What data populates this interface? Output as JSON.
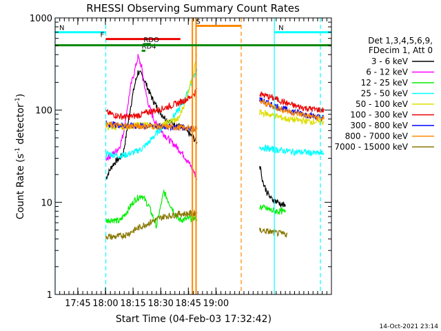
{
  "chart_data": {
    "type": "line",
    "title": "RHESSI Observing Summary Count Rates",
    "xlabel": "Start Time (04-Feb-03 17:32:42)",
    "ylabel_parts": [
      "Count Rate (s",
      "-1",
      " detector",
      "-1",
      ")"
    ],
    "yscale": "log",
    "ylim": [
      1,
      1000
    ],
    "xlim_min": [
      0,
      150
    ],
    "x_tick_labels": [
      "17:45",
      "18:00",
      "18:15",
      "18:30",
      "18:45",
      "19:00"
    ],
    "x_tick_min": [
      12.3,
      27.3,
      42.3,
      57.3,
      72.3,
      87.3
    ],
    "y_tick_labels": [
      "1",
      "10",
      "100",
      "1000"
    ],
    "y_tick_values": [
      1,
      10,
      100,
      1000
    ],
    "legend_header": [
      "Det 1,3,4,5,6,9,",
      "FDecim 1, Att 0"
    ],
    "legend_placement": "right",
    "footer_date": "14-Oct-2021 23:14",
    "data_gaps_min": [
      [
        0,
        27.5
      ],
      [
        77,
        111
      ]
    ],
    "series": [
      {
        "name": "3 - 6 keV",
        "color": "#000000",
        "x": [
          27.5,
          29,
          31,
          33,
          35,
          37,
          39,
          41,
          43,
          45,
          47,
          49,
          51,
          53,
          55,
          57,
          59,
          61,
          63,
          65,
          67,
          69,
          71,
          73,
          75,
          77
        ],
        "y": [
          18,
          21,
          25,
          28,
          30,
          34,
          60,
          110,
          180,
          260,
          240,
          200,
          160,
          130,
          110,
          95,
          85,
          78,
          74,
          70,
          68,
          65,
          60,
          55,
          50,
          45
        ]
      },
      {
        "name": "6 - 12 keV",
        "color": "#ff00ff",
        "x": [
          27.5,
          29,
          31,
          33,
          35,
          37,
          39,
          41,
          43,
          45,
          47,
          49,
          51,
          53,
          55,
          57,
          59,
          61,
          63,
          65,
          67,
          69,
          71,
          73,
          75,
          77
        ],
        "y": [
          30,
          31,
          33,
          36,
          40,
          55,
          100,
          180,
          260,
          380,
          290,
          160,
          110,
          85,
          70,
          62,
          55,
          50,
          45,
          42,
          38,
          34,
          30,
          26,
          22,
          18
        ]
      },
      {
        "name": "12 - 25 keV",
        "color": "#00ee00",
        "x": [
          27.5,
          31,
          35,
          39,
          43,
          47,
          51,
          55,
          59,
          63,
          67,
          71,
          75,
          77
        ],
        "y": [
          6.3,
          6.5,
          6.2,
          8,
          10.5,
          12,
          9,
          5.5,
          13,
          9,
          6.5,
          6.5,
          6.8,
          6.5
        ]
      },
      {
        "name": "25 - 50 keV",
        "color": "#00ffff",
        "x": [
          27.5,
          31,
          35,
          39,
          43,
          47,
          51,
          55,
          59,
          63,
          67,
          71,
          75,
          77
        ],
        "y": [
          34,
          33,
          32,
          33,
          35,
          38,
          45,
          56,
          68,
          80,
          100,
          140,
          230,
          280
        ]
      },
      {
        "name": "50 - 100 keV",
        "color": "#dddd00",
        "x": [
          27.5,
          31,
          35,
          39,
          43,
          47,
          51,
          55,
          59,
          63,
          67,
          71,
          75,
          77
        ],
        "y": [
          66,
          65,
          66,
          67,
          68,
          70,
          68,
          66,
          70,
          76,
          80,
          130,
          250,
          400
        ]
      },
      {
        "name": "100 - 300 keV",
        "color": "#ee0000",
        "x": [
          27.5,
          31,
          35,
          39,
          43,
          47,
          51,
          55,
          59,
          63,
          67,
          71,
          75,
          77
        ],
        "y": [
          95,
          90,
          86,
          84,
          86,
          90,
          96,
          100,
          105,
          112,
          120,
          130,
          145,
          170
        ]
      },
      {
        "name": "300 - 800 keV",
        "color": "#0000ff",
        "x": [
          27.5,
          31,
          35,
          39,
          43,
          47,
          51,
          55,
          59,
          63,
          67,
          71,
          75,
          77
        ],
        "y": [
          72,
          70,
          69,
          68,
          67,
          67,
          67,
          67,
          66,
          66,
          65,
          65,
          64,
          64
        ]
      },
      {
        "name": "800 - 7000 keV",
        "color": "#ff8800",
        "x": [
          27.5,
          31,
          35,
          39,
          43,
          47,
          51,
          55,
          59,
          63,
          67,
          71,
          75,
          77
        ],
        "y": [
          70,
          69,
          68,
          67,
          67,
          67,
          67,
          67,
          66,
          66,
          65,
          64,
          63,
          62
        ]
      },
      {
        "name": "7000 - 15000 keV",
        "color": "#887700",
        "x": [
          27.5,
          31,
          35,
          39,
          43,
          47,
          51,
          55,
          59,
          63,
          67,
          71,
          75,
          77
        ],
        "y": [
          4.3,
          4.2,
          4.3,
          4.5,
          5,
          5.5,
          6,
          6.5,
          7,
          7.2,
          7.5,
          7.5,
          7.6,
          7.8
        ]
      }
    ],
    "series_after_gap": [
      {
        "color": "#000000",
        "x": [
          111,
          113,
          115,
          117,
          119,
          121,
          123,
          125
        ],
        "y": [
          26,
          16,
          13,
          11,
          10.5,
          10,
          9.5,
          9
        ]
      },
      {
        "color": "#00ee00",
        "x": [
          111,
          115,
          119,
          123,
          125
        ],
        "y": [
          9,
          8.5,
          8,
          8,
          7.8
        ]
      },
      {
        "color": "#00ffff",
        "x": [
          111,
          116,
          121,
          126,
          131,
          136,
          141,
          146
        ],
        "y": [
          40,
          38,
          37,
          36,
          35,
          35,
          34,
          34
        ]
      },
      {
        "color": "#dddd00",
        "x": [
          111,
          116,
          121,
          126,
          131,
          136,
          141,
          146
        ],
        "y": [
          95,
          90,
          85,
          80,
          78,
          76,
          75,
          74
        ]
      },
      {
        "color": "#ee0000",
        "x": [
          111,
          116,
          121,
          126,
          131,
          136,
          141,
          146
        ],
        "y": [
          150,
          140,
          130,
          118,
          110,
          105,
          102,
          100
        ]
      },
      {
        "color": "#0000ff",
        "x": [
          111,
          116,
          121,
          126,
          131,
          136,
          141,
          146
        ],
        "y": [
          130,
          118,
          108,
          100,
          95,
          90,
          86,
          82
        ]
      },
      {
        "color": "#ff8800",
        "x": [
          111,
          116,
          121,
          126,
          131,
          136,
          141,
          146
        ],
        "y": [
          125,
          115,
          105,
          98,
          92,
          88,
          84,
          80
        ]
      },
      {
        "color": "#887700",
        "x": [
          111,
          116,
          121,
          126
        ],
        "y": [
          5,
          4.8,
          4.6,
          4.5
        ]
      }
    ],
    "flag_bars": [
      {
        "label": "N",
        "color": "#00ffff",
        "x_start": 0,
        "x_end": 27.5,
        "level": 700
      },
      {
        "label": "N",
        "color": "#00ffff",
        "x_start": 119,
        "x_end": 150,
        "level": 700
      },
      {
        "label": "F",
        "color": "#ee0000",
        "x_start": 27.5,
        "x_end": 68,
        "level": 590
      },
      {
        "label": "S",
        "color": "#ff8800",
        "x_start": 76.5,
        "x_end": 101,
        "level": 820
      },
      {
        "label": "RDO",
        "color": "#008800",
        "x_start": 48,
        "x_end": 52,
        "level": 520
      },
      {
        "label": "RD4",
        "color": "#008800",
        "x_start": 47,
        "x_end": 49,
        "level": 440
      },
      {
        "label": "",
        "color": "#008800",
        "x_start": 0,
        "x_end": 150,
        "level": 505
      }
    ],
    "vertical_markers": [
      {
        "x": 27.5,
        "color": "#00ffff",
        "style": "dashed"
      },
      {
        "x": 101,
        "color": "#ff8800",
        "style": "dashed"
      },
      {
        "x": 119,
        "color": "#00ffff",
        "style": "solid"
      },
      {
        "x": 144,
        "color": "#00ffff",
        "style": "dashed"
      },
      {
        "x": 0,
        "color": "#00ffff",
        "style": "solid"
      },
      {
        "x": 74.5,
        "color": "#ff8800",
        "style": "solid"
      },
      {
        "x": 76.5,
        "color": "#ff8800",
        "style": "solid"
      }
    ]
  }
}
